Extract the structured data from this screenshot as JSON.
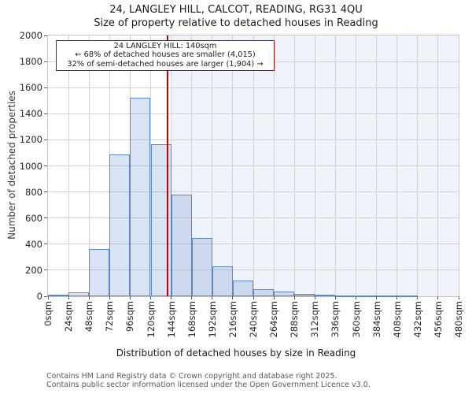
{
  "title": {
    "line1": "24, LANGLEY HILL, CALCOT, READING, RG31 4QU",
    "line2": "Size of property relative to detached houses in Reading"
  },
  "annotation": {
    "line1": "24 LANGLEY HILL: 140sqm",
    "line2": "← 68% of detached houses are smaller (4,015)",
    "line3": "32% of semi-detached houses are larger (1,904) →"
  },
  "axes": {
    "x_label": "Distribution of detached houses by size in Reading",
    "y_label": "Number of detached properties"
  },
  "footer": {
    "line1": "Contains HM Land Registry data © Crown copyright and database right 2025.",
    "line2": "Contains public sector information licensed under the Open Government Licence v3.0."
  },
  "chart_data": {
    "type": "bar",
    "title": "24, LANGLEY HILL, CALCOT, READING, RG31 4QU — Size of property relative to detached houses in Reading",
    "xlabel": "Distribution of detached houses by size in Reading",
    "ylabel": "Number of detached properties",
    "bin_width_sqm": 24,
    "bin_starts_sqm": [
      0,
      24,
      48,
      72,
      96,
      120,
      144,
      168,
      192,
      216,
      240,
      264,
      288,
      312,
      336,
      360,
      384,
      408,
      432,
      456
    ],
    "values": [
      10,
      30,
      360,
      1090,
      1520,
      1165,
      780,
      450,
      230,
      120,
      55,
      35,
      20,
      15,
      5,
      5,
      5,
      5,
      0,
      0
    ],
    "x_tick_labels": [
      "0sqm",
      "24sqm",
      "48sqm",
      "72sqm",
      "96sqm",
      "120sqm",
      "144sqm",
      "168sqm",
      "192sqm",
      "216sqm",
      "240sqm",
      "264sqm",
      "288sqm",
      "312sqm",
      "336sqm",
      "360sqm",
      "384sqm",
      "408sqm",
      "432sqm",
      "456sqm",
      "480sqm"
    ],
    "y_ticks": [
      0,
      200,
      400,
      600,
      800,
      1000,
      1200,
      1400,
      1600,
      1800,
      2000
    ],
    "ylim": [
      0,
      2000
    ],
    "xlim_sqm": [
      0,
      480
    ],
    "marker_sqm": 140,
    "shade_from_sqm": 144,
    "grid": true
  },
  "colors": {
    "bar_fill": "rgba(68,114,196,0.2)",
    "bar_edge": "#5b87c5",
    "marker_line": "#c00000",
    "annotation_border": "#c00000",
    "shade": "#eff3fb",
    "grid": "#d2d2d2",
    "spine": "#c4c4c4",
    "tick": "#555555",
    "footer_text": "#595959"
  }
}
